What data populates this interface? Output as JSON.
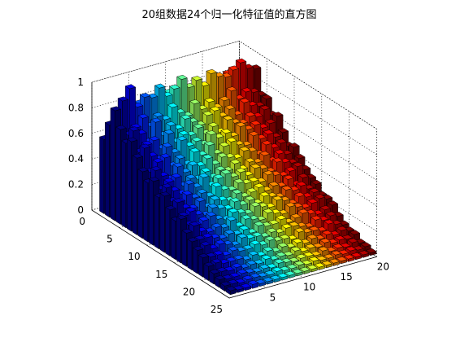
{
  "figure": {
    "background": "#ffffff"
  },
  "chart_data": {
    "type": "bar3d",
    "title": "20组数据24个归一化特征值的直方图",
    "xlabel": "",
    "ylabel": "",
    "zlabel": "",
    "dataset_axis": {
      "ticks": [
        "5",
        "10",
        "15",
        "20"
      ],
      "range": [
        0,
        20
      ],
      "count": 20
    },
    "feature_axis": {
      "ticks": [
        "0",
        "5",
        "10",
        "15",
        "20",
        "25"
      ],
      "range": [
        0,
        25
      ],
      "count": 24
    },
    "z_axis": {
      "ticks": [
        "0",
        "0.2",
        "0.4",
        "0.6",
        "0.8",
        "1"
      ],
      "range": [
        0,
        1
      ]
    },
    "grid": true,
    "colormap": "jet",
    "note_values_estimated": true,
    "values": [
      [
        0.58,
        0.72,
        0.86,
        0.74,
        0.66,
        0.7,
        0.6,
        0.52,
        0.46,
        0.5,
        0.4,
        0.44,
        0.36,
        0.3,
        0.34,
        0.26,
        0.22,
        0.18,
        0.15,
        0.11,
        0.08,
        0.06,
        0.04,
        0.03
      ],
      [
        0.62,
        0.8,
        0.92,
        0.68,
        0.74,
        0.6,
        0.66,
        0.5,
        0.54,
        0.42,
        0.46,
        0.38,
        0.4,
        0.32,
        0.28,
        0.3,
        0.22,
        0.2,
        0.14,
        0.12,
        0.08,
        0.05,
        0.04,
        0.02
      ],
      [
        0.55,
        0.76,
        1.0,
        0.72,
        0.7,
        0.64,
        0.58,
        0.56,
        0.48,
        0.46,
        0.42,
        0.36,
        0.34,
        0.34,
        0.26,
        0.24,
        0.22,
        0.16,
        0.14,
        0.1,
        0.07,
        0.05,
        0.03,
        0.02
      ],
      [
        0.6,
        0.7,
        0.84,
        0.78,
        0.62,
        0.66,
        0.54,
        0.58,
        0.44,
        0.48,
        0.38,
        0.4,
        0.32,
        0.3,
        0.28,
        0.22,
        0.2,
        0.18,
        0.12,
        0.1,
        0.08,
        0.06,
        0.04,
        0.03
      ],
      [
        0.66,
        0.82,
        0.9,
        0.7,
        0.76,
        0.58,
        0.62,
        0.5,
        0.52,
        0.4,
        0.44,
        0.36,
        0.36,
        0.28,
        0.3,
        0.24,
        0.18,
        0.16,
        0.14,
        0.1,
        0.06,
        0.05,
        0.04,
        0.02
      ],
      [
        0.58,
        0.74,
        0.88,
        0.76,
        0.64,
        0.68,
        0.56,
        0.54,
        0.46,
        0.44,
        0.4,
        0.38,
        0.3,
        0.32,
        0.26,
        0.22,
        0.2,
        0.14,
        0.12,
        0.08,
        0.07,
        0.04,
        0.03,
        0.02
      ],
      [
        0.7,
        0.78,
        0.94,
        0.72,
        0.7,
        0.6,
        0.64,
        0.48,
        0.5,
        0.42,
        0.46,
        0.34,
        0.34,
        0.3,
        0.24,
        0.26,
        0.18,
        0.18,
        0.12,
        0.1,
        0.06,
        0.05,
        0.03,
        0.02
      ],
      [
        0.62,
        0.72,
        0.86,
        0.8,
        0.66,
        0.64,
        0.58,
        0.56,
        0.48,
        0.46,
        0.38,
        0.4,
        0.32,
        0.28,
        0.28,
        0.2,
        0.2,
        0.16,
        0.14,
        0.08,
        0.08,
        0.04,
        0.04,
        0.02
      ],
      [
        0.68,
        0.84,
        0.9,
        0.74,
        0.72,
        0.62,
        0.6,
        0.52,
        0.52,
        0.4,
        0.42,
        0.36,
        0.3,
        0.32,
        0.26,
        0.24,
        0.16,
        0.16,
        0.12,
        0.1,
        0.06,
        0.06,
        0.03,
        0.02
      ],
      [
        0.64,
        0.76,
        0.96,
        0.7,
        0.68,
        0.66,
        0.56,
        0.58,
        0.46,
        0.44,
        0.44,
        0.34,
        0.34,
        0.28,
        0.24,
        0.22,
        0.2,
        0.14,
        0.14,
        0.08,
        0.07,
        0.05,
        0.03,
        0.02
      ],
      [
        0.72,
        0.8,
        0.88,
        0.78,
        0.64,
        0.6,
        0.62,
        0.5,
        0.5,
        0.42,
        0.4,
        0.38,
        0.3,
        0.3,
        0.28,
        0.2,
        0.18,
        0.16,
        0.12,
        0.1,
        0.06,
        0.04,
        0.04,
        0.02
      ],
      [
        0.66,
        0.74,
        0.92,
        0.72,
        0.7,
        0.64,
        0.58,
        0.54,
        0.48,
        0.46,
        0.42,
        0.36,
        0.32,
        0.26,
        0.26,
        0.24,
        0.18,
        0.14,
        0.12,
        0.08,
        0.08,
        0.05,
        0.03,
        0.02
      ],
      [
        0.74,
        0.82,
        0.86,
        0.76,
        0.72,
        0.58,
        0.6,
        0.56,
        0.46,
        0.4,
        0.38,
        0.36,
        0.34,
        0.3,
        0.24,
        0.22,
        0.2,
        0.16,
        0.1,
        0.1,
        0.06,
        0.05,
        0.04,
        0.02
      ],
      [
        0.68,
        0.78,
        0.94,
        0.7,
        0.66,
        0.66,
        0.56,
        0.52,
        0.5,
        0.44,
        0.42,
        0.34,
        0.3,
        0.28,
        0.28,
        0.2,
        0.16,
        0.16,
        0.14,
        0.08,
        0.07,
        0.04,
        0.03,
        0.02
      ],
      [
        0.76,
        0.84,
        0.9,
        0.74,
        0.7,
        0.62,
        0.62,
        0.5,
        0.48,
        0.42,
        0.4,
        0.38,
        0.32,
        0.26,
        0.26,
        0.24,
        0.18,
        0.14,
        0.12,
        0.1,
        0.06,
        0.06,
        0.03,
        0.02
      ],
      [
        0.7,
        0.76,
        0.88,
        0.8,
        0.64,
        0.6,
        0.58,
        0.56,
        0.44,
        0.46,
        0.36,
        0.36,
        0.3,
        0.3,
        0.22,
        0.22,
        0.2,
        0.12,
        0.12,
        0.08,
        0.08,
        0.04,
        0.04,
        0.02
      ],
      [
        0.78,
        0.86,
        0.92,
        0.72,
        0.72,
        0.64,
        0.6,
        0.52,
        0.5,
        0.4,
        0.42,
        0.34,
        0.34,
        0.28,
        0.26,
        0.2,
        0.18,
        0.16,
        0.1,
        0.1,
        0.06,
        0.05,
        0.03,
        0.02
      ],
      [
        0.72,
        0.8,
        0.96,
        0.76,
        0.68,
        0.62,
        0.56,
        0.54,
        0.46,
        0.44,
        0.4,
        0.36,
        0.28,
        0.3,
        0.24,
        0.22,
        0.16,
        0.14,
        0.14,
        0.08,
        0.07,
        0.04,
        0.04,
        0.02
      ],
      [
        0.8,
        0.84,
        0.9,
        0.74,
        0.66,
        0.66,
        0.58,
        0.5,
        0.48,
        0.42,
        0.38,
        0.38,
        0.32,
        0.26,
        0.26,
        0.24,
        0.18,
        0.16,
        0.12,
        0.1,
        0.06,
        0.06,
        0.03,
        0.02
      ],
      [
        0.74,
        0.82,
        0.88,
        0.7,
        0.7,
        0.6,
        0.62,
        0.52,
        0.44,
        0.46,
        0.4,
        0.34,
        0.3,
        0.28,
        0.22,
        0.22,
        0.2,
        0.14,
        0.1,
        0.08,
        0.08,
        0.04,
        0.04,
        0.02
      ]
    ]
  }
}
